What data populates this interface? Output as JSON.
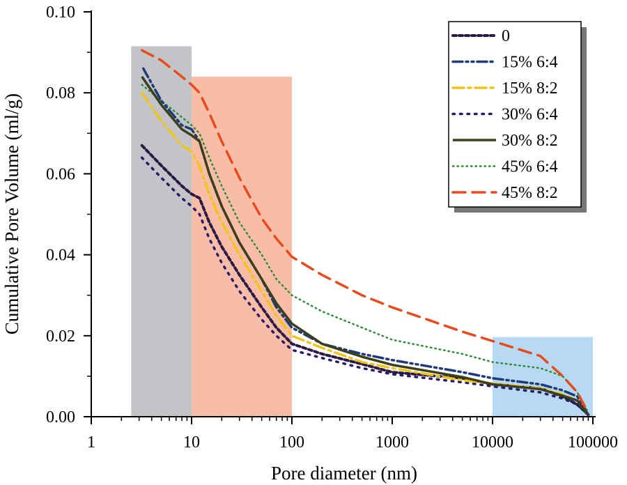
{
  "chart_data": {
    "type": "line",
    "title": "",
    "xlabel": "Pore diameter (nm)",
    "ylabel": "Cumulative Pore Volume (ml/g)",
    "xscale": "log",
    "xlim": [
      1,
      100000
    ],
    "ylim": [
      0,
      0.1
    ],
    "x_ticks": [
      {
        "value": 1,
        "label": "1"
      },
      {
        "value": 10,
        "label": "10"
      },
      {
        "value": 100,
        "label": "100"
      },
      {
        "value": 1000,
        "label": "1000"
      },
      {
        "value": 10000,
        "label": "10000"
      },
      {
        "value": 100000,
        "label": "100000"
      }
    ],
    "y_ticks": [
      {
        "value": 0,
        "label": "0.00"
      },
      {
        "value": 0.02,
        "label": "0.02"
      },
      {
        "value": 0.04,
        "label": "0.04"
      },
      {
        "value": 0.06,
        "label": "0.06"
      },
      {
        "value": 0.08,
        "label": "0.08"
      },
      {
        "value": 0.1,
        "label": "0.10"
      }
    ],
    "legend_position": "top-right",
    "shaded_regions": [
      {
        "x": [
          2.5,
          10
        ],
        "y_max": 0.0915,
        "color": "#c3c4c8"
      },
      {
        "x": [
          10,
          100
        ],
        "y_max": 0.084,
        "color": "#f8bda6"
      },
      {
        "x": [
          10000,
          100000
        ],
        "y_max": 0.0197,
        "color": "#b7d9f3"
      }
    ],
    "series": [
      {
        "name": "0",
        "color": "#2a1a45",
        "dash": "short-dash",
        "width": 4,
        "points": [
          [
            3.2,
            0.067
          ],
          [
            5,
            0.062
          ],
          [
            8,
            0.057
          ],
          [
            10,
            0.055
          ],
          [
            12,
            0.054
          ],
          [
            15,
            0.048
          ],
          [
            20,
            0.042
          ],
          [
            30,
            0.035
          ],
          [
            50,
            0.027
          ],
          [
            70,
            0.022
          ],
          [
            100,
            0.018
          ],
          [
            200,
            0.0155
          ],
          [
            500,
            0.013
          ],
          [
            1000,
            0.011
          ],
          [
            5000,
            0.0095
          ],
          [
            10000,
            0.008
          ],
          [
            30000,
            0.007
          ],
          [
            50000,
            0.005
          ],
          [
            70000,
            0.003
          ],
          [
            90000,
            0.0005
          ]
        ]
      },
      {
        "name": "15% 6:4",
        "color": "#1d3b78",
        "dash": "dash-dot-dot",
        "width": 3.5,
        "points": [
          [
            3.3,
            0.086
          ],
          [
            5,
            0.078
          ],
          [
            8,
            0.072
          ],
          [
            10,
            0.071
          ],
          [
            12,
            0.068
          ],
          [
            15,
            0.06
          ],
          [
            20,
            0.052
          ],
          [
            30,
            0.043
          ],
          [
            50,
            0.034
          ],
          [
            70,
            0.027
          ],
          [
            100,
            0.022
          ],
          [
            200,
            0.018
          ],
          [
            500,
            0.0155
          ],
          [
            1000,
            0.014
          ],
          [
            5000,
            0.011
          ],
          [
            10000,
            0.0095
          ],
          [
            30000,
            0.008
          ],
          [
            50000,
            0.0065
          ],
          [
            70000,
            0.005
          ],
          [
            90000,
            0.0005
          ]
        ]
      },
      {
        "name": "15% 8:2",
        "color": "#f0c419",
        "dash": "dash-dot",
        "width": 3.5,
        "points": [
          [
            3.2,
            0.08
          ],
          [
            5,
            0.073
          ],
          [
            8,
            0.067
          ],
          [
            10,
            0.0655
          ],
          [
            12,
            0.062
          ],
          [
            15,
            0.055
          ],
          [
            20,
            0.048
          ],
          [
            30,
            0.04
          ],
          [
            50,
            0.031
          ],
          [
            70,
            0.025
          ],
          [
            100,
            0.02
          ],
          [
            200,
            0.017
          ],
          [
            500,
            0.0135
          ],
          [
            1000,
            0.012
          ],
          [
            5000,
            0.009
          ],
          [
            10000,
            0.0082
          ],
          [
            30000,
            0.007
          ],
          [
            50000,
            0.0055
          ],
          [
            70000,
            0.004
          ],
          [
            90000,
            0.0005
          ]
        ]
      },
      {
        "name": "30% 6:4",
        "color": "#2a1a6b",
        "dash": "dotted",
        "width": 3.5,
        "points": [
          [
            3.2,
            0.064
          ],
          [
            5,
            0.059
          ],
          [
            8,
            0.054
          ],
          [
            10,
            0.052
          ],
          [
            12,
            0.05
          ],
          [
            15,
            0.044
          ],
          [
            20,
            0.038
          ],
          [
            30,
            0.031
          ],
          [
            50,
            0.024
          ],
          [
            70,
            0.02
          ],
          [
            100,
            0.0165
          ],
          [
            200,
            0.0145
          ],
          [
            500,
            0.012
          ],
          [
            1000,
            0.0105
          ],
          [
            5000,
            0.0085
          ],
          [
            10000,
            0.0075
          ],
          [
            30000,
            0.006
          ],
          [
            50000,
            0.0045
          ],
          [
            70000,
            0.003
          ],
          [
            90000,
            0.0005
          ]
        ]
      },
      {
        "name": "30% 8:2",
        "color": "#3b3f1c",
        "dash": "solid",
        "width": 3.5,
        "points": [
          [
            3.2,
            0.084
          ],
          [
            5,
            0.077
          ],
          [
            8,
            0.071
          ],
          [
            10,
            0.0695
          ],
          [
            12,
            0.068
          ],
          [
            15,
            0.06
          ],
          [
            20,
            0.052
          ],
          [
            30,
            0.043
          ],
          [
            50,
            0.034
          ],
          [
            70,
            0.028
          ],
          [
            100,
            0.023
          ],
          [
            200,
            0.018
          ],
          [
            500,
            0.0148
          ],
          [
            1000,
            0.0128
          ],
          [
            5000,
            0.0098
          ],
          [
            10000,
            0.008
          ],
          [
            30000,
            0.0068
          ],
          [
            50000,
            0.0052
          ],
          [
            70000,
            0.004
          ],
          [
            90000,
            0.0005
          ]
        ]
      },
      {
        "name": "45% 6:4",
        "color": "#2e8b3a",
        "dash": "fine-dot",
        "width": 2.5,
        "points": [
          [
            3.2,
            0.082
          ],
          [
            5,
            0.078
          ],
          [
            8,
            0.074
          ],
          [
            10,
            0.072
          ],
          [
            12,
            0.07
          ],
          [
            15,
            0.064
          ],
          [
            20,
            0.057
          ],
          [
            30,
            0.048
          ],
          [
            50,
            0.04
          ],
          [
            70,
            0.034
          ],
          [
            100,
            0.03
          ],
          [
            200,
            0.026
          ],
          [
            500,
            0.022
          ],
          [
            1000,
            0.019
          ],
          [
            5000,
            0.0155
          ],
          [
            10000,
            0.0135
          ],
          [
            30000,
            0.012
          ],
          [
            50000,
            0.01
          ],
          [
            70000,
            0.006
          ],
          [
            90000,
            0.001
          ]
        ]
      },
      {
        "name": "45% 8:2",
        "color": "#e84a1c",
        "dash": "long-dash",
        "width": 3.5,
        "points": [
          [
            3.2,
            0.0905
          ],
          [
            5,
            0.088
          ],
          [
            8,
            0.084
          ],
          [
            10,
            0.082
          ],
          [
            12,
            0.08
          ],
          [
            15,
            0.075
          ],
          [
            20,
            0.068
          ],
          [
            30,
            0.059
          ],
          [
            50,
            0.049
          ],
          [
            70,
            0.044
          ],
          [
            100,
            0.0395
          ],
          [
            200,
            0.035
          ],
          [
            500,
            0.03
          ],
          [
            1000,
            0.027
          ],
          [
            5000,
            0.021
          ],
          [
            10000,
            0.0187
          ],
          [
            30000,
            0.015
          ],
          [
            50000,
            0.01
          ],
          [
            70000,
            0.006
          ],
          [
            90000,
            0.001
          ]
        ]
      }
    ]
  }
}
